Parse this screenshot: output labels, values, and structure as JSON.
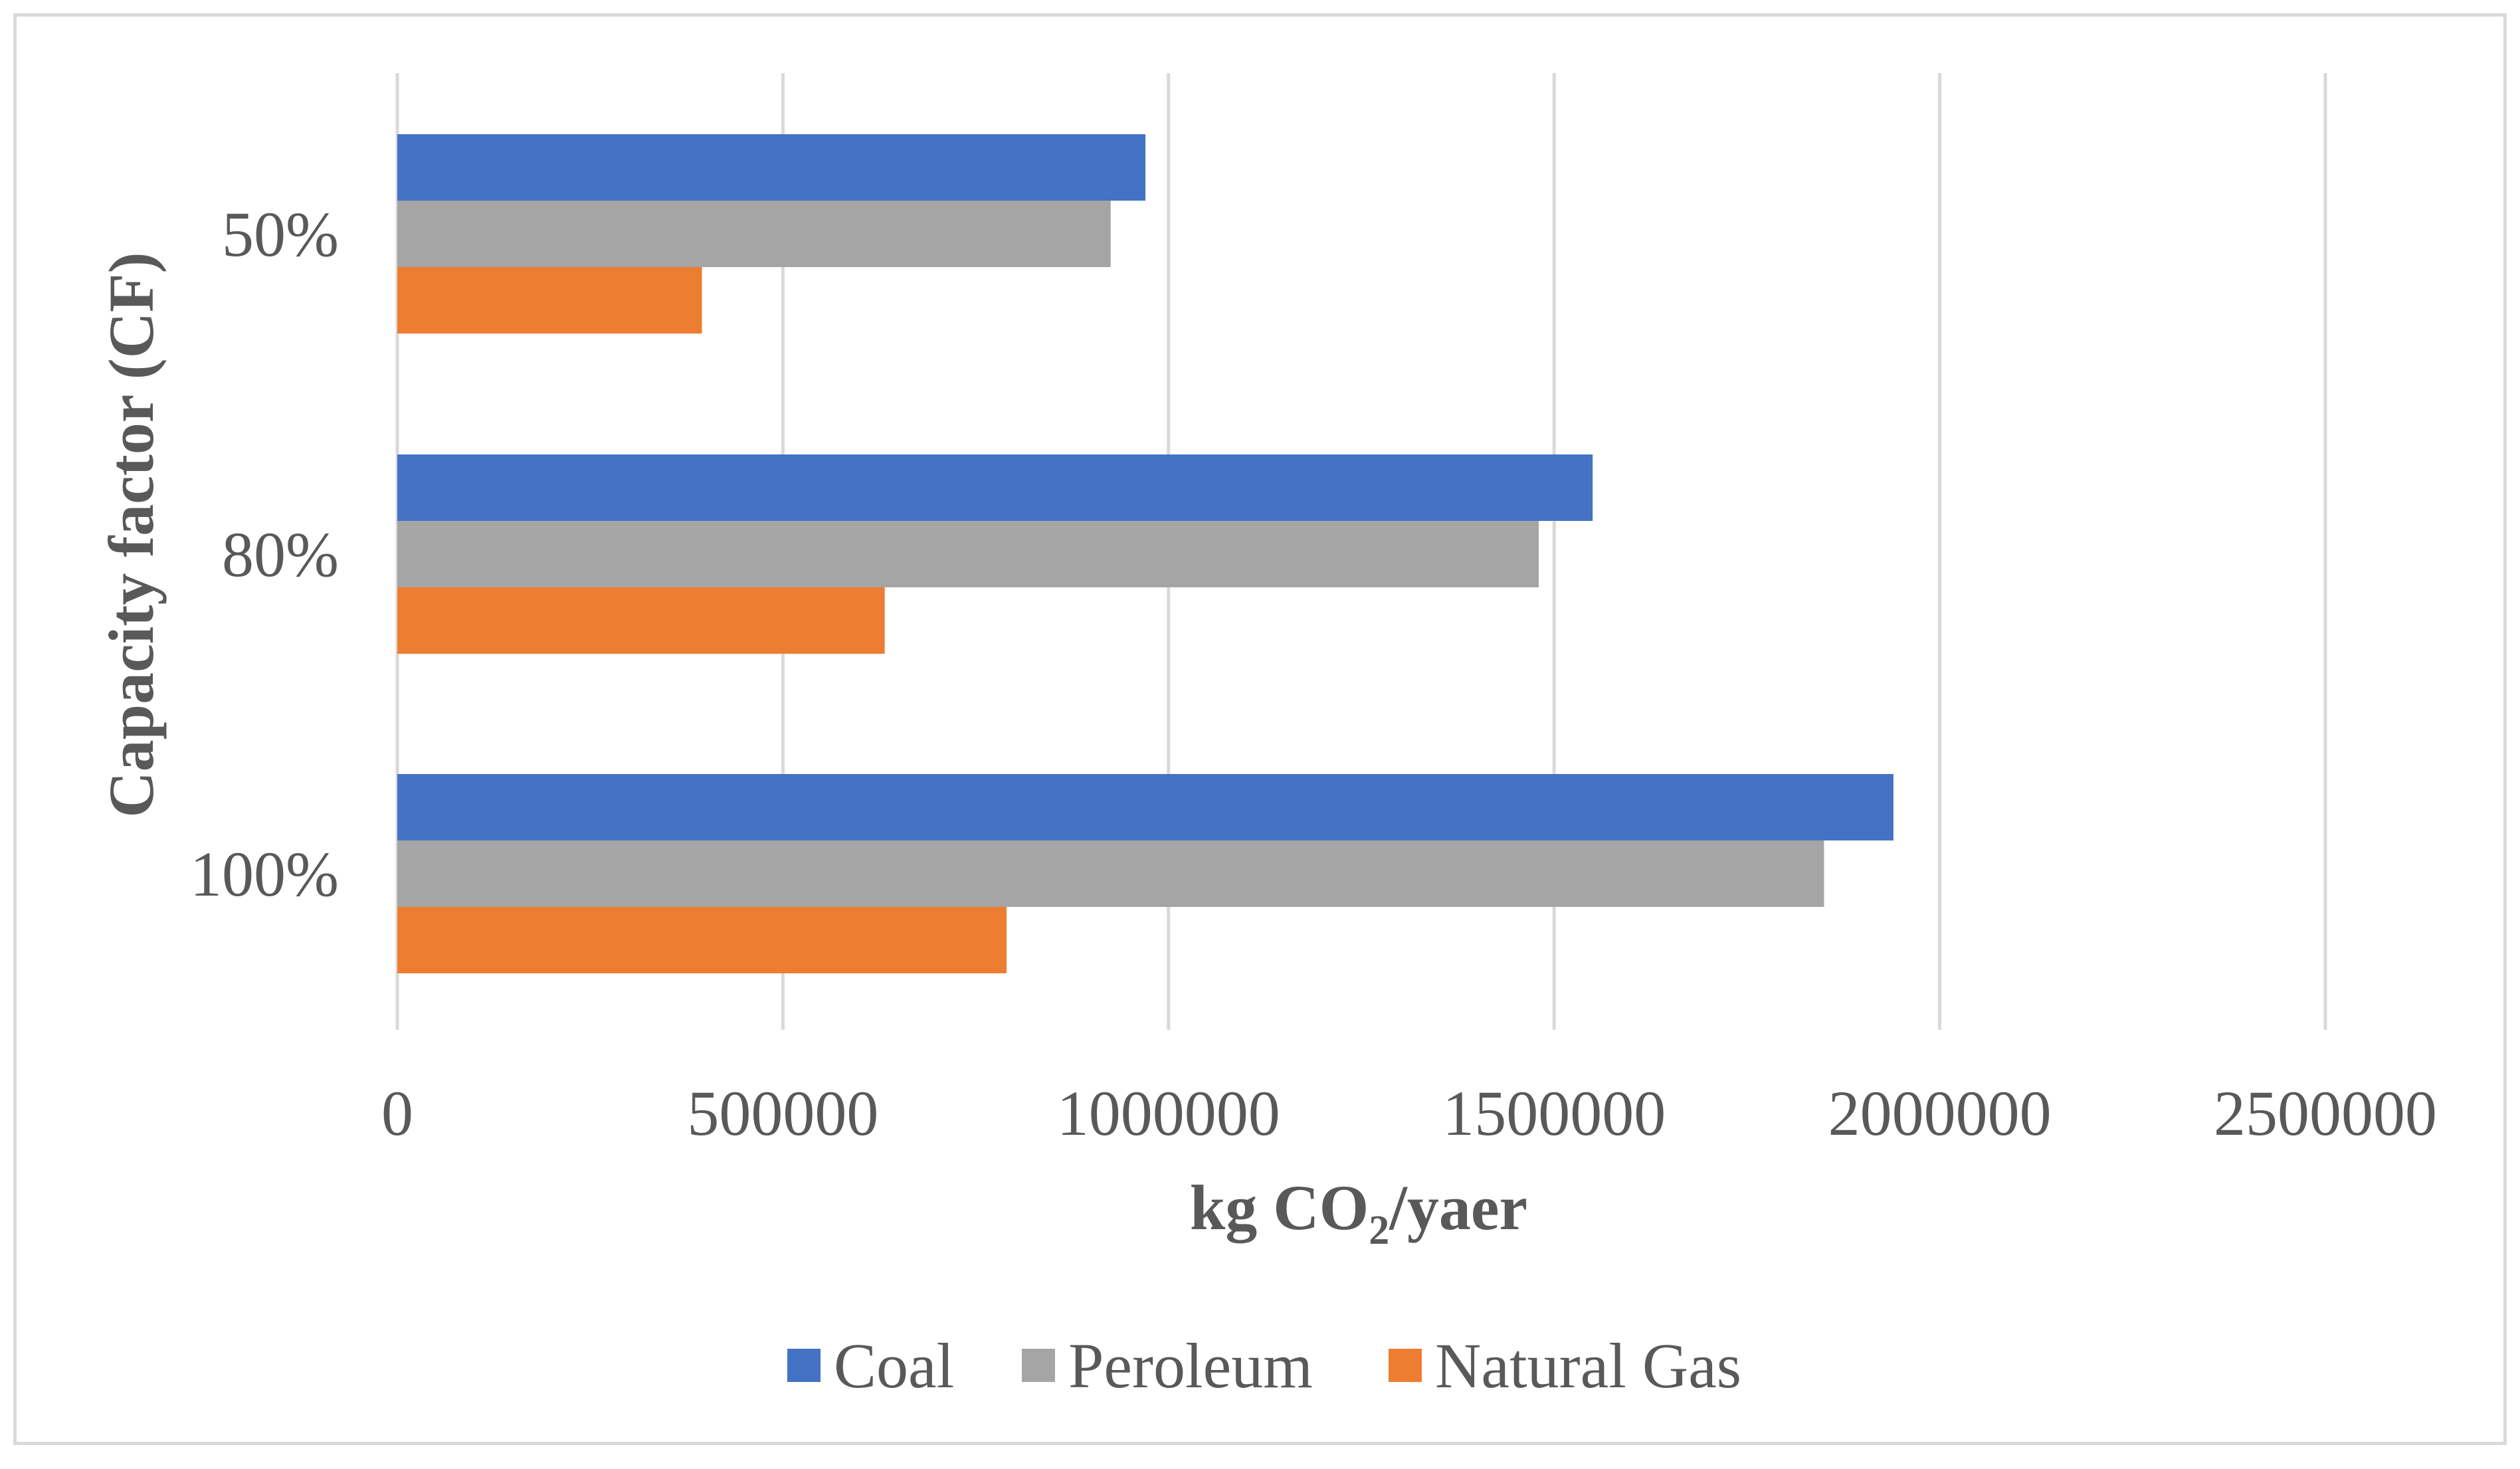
{
  "chart_data": {
    "type": "bar",
    "orientation": "horizontal",
    "categories": [
      "50%",
      "80%",
      "100%"
    ],
    "series": [
      {
        "name": "Coal",
        "color": "#4472c4",
        "values": [
          970000,
          1550000,
          1940000
        ]
      },
      {
        "name": "Peroleum",
        "color": "#a5a5a5",
        "values": [
          925000,
          1480000,
          1850000
        ]
      },
      {
        "name": "Natural Gas",
        "color": "#ed7d31",
        "values": [
          395000,
          632000,
          790000
        ]
      }
    ],
    "xlim": [
      0,
      2500000
    ],
    "x_ticks": [
      "0",
      "500000",
      "1000000",
      "1500000",
      "2000000",
      "2500000"
    ],
    "x_tick_values": [
      0,
      500000,
      1000000,
      1500000,
      2000000,
      2500000
    ],
    "xlabel": {
      "prefix": "kg CO",
      "subscript": "2",
      "suffix": "/yaer"
    },
    "ylabel": "Capacity factor (CF)",
    "grid": true,
    "legend_position": "bottom",
    "gridline_color": "#d9d9d9"
  }
}
